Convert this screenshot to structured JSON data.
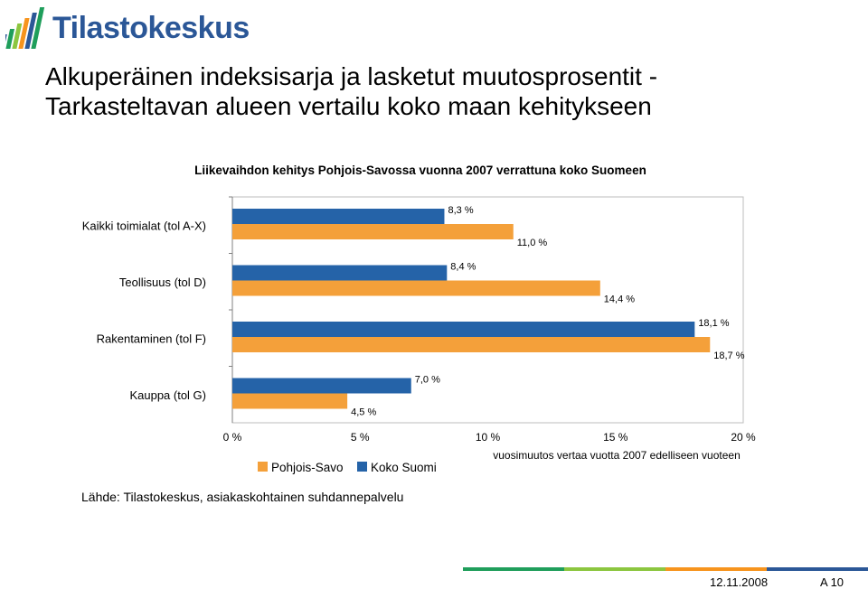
{
  "logo": {
    "text": "Tilastokeskus"
  },
  "slide_title": "Alkuperäinen indeksisarja ja lasketut muutosprosentit -\nTarkasteltavan alueen vertailu koko maan kehitykseen",
  "source": "Lähde: Tilastokeskus, asiakaskohtainen suhdannepalvelu",
  "footer": {
    "date": "12.11.2008",
    "page": "A 10"
  },
  "colors": {
    "koko_suomi": "#2563a8",
    "pohjois_savo": "#f4a03a",
    "footer_stripes": [
      "#1f9e5b",
      "#8cc63f",
      "#f7941d",
      "#2b5797"
    ]
  },
  "chart_data": {
    "type": "bar",
    "orientation": "horizontal",
    "title": "Liikevaihdon kehitys Pohjois-Savossa vuonna 2007 verrattuna koko Suomeen",
    "xlabel": "vuosimuutos vertaa vuotta 2007 edelliseen vuoteen",
    "ylabel": "",
    "xlim": [
      0,
      20
    ],
    "xticks": [
      "0 %",
      "5 %",
      "10 %",
      "15 %",
      "20 %"
    ],
    "categories": [
      "Kaikki toimialat (tol A-X)",
      "Teollisuus (tol D)",
      "Rakentaminen (tol F)",
      "Kauppa (tol G)"
    ],
    "series": [
      {
        "name": "Koko Suomi",
        "values": [
          8.3,
          8.4,
          18.1,
          7.0
        ],
        "labels": [
          "8,3 %",
          "8,4 %",
          "18,1 %",
          "7,0 %"
        ]
      },
      {
        "name": "Pohjois-Savo",
        "values": [
          11.0,
          14.4,
          18.7,
          4.5
        ],
        "labels": [
          "11,0 %",
          "14,4 %",
          "18,7 %",
          "4,5 %"
        ]
      }
    ],
    "legend": [
      {
        "name": "Pohjois-Savo",
        "color": "#f4a03a"
      },
      {
        "name": "Koko Suomi",
        "color": "#2563a8"
      }
    ],
    "legend_position": "bottom-left",
    "grid": false
  }
}
